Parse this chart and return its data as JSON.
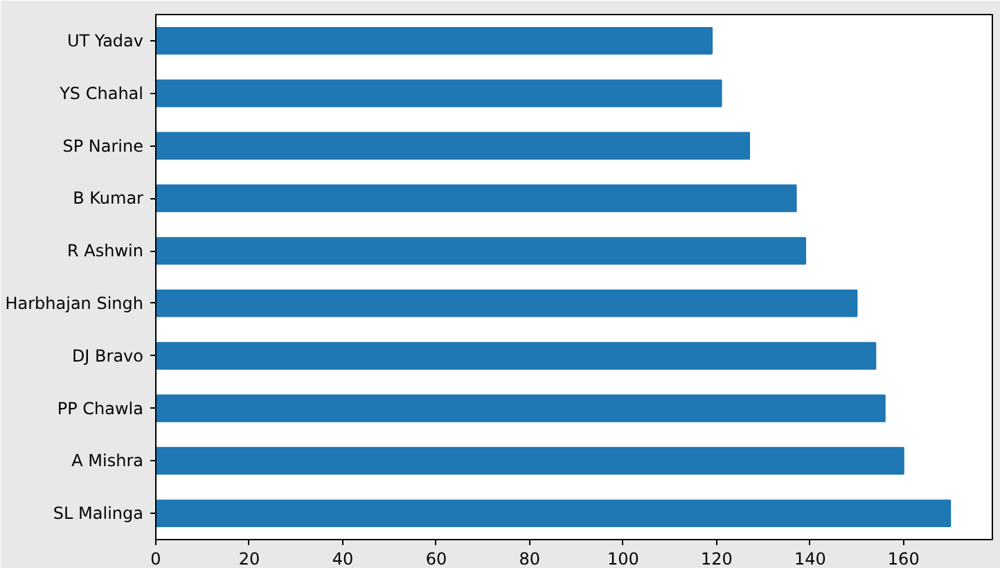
{
  "chart_data": {
    "type": "bar",
    "orientation": "horizontal",
    "categories": [
      "UT Yadav",
      "YS Chahal",
      "SP Narine",
      "B Kumar",
      "R Ashwin",
      "Harbhajan Singh",
      "DJ Bravo",
      "PP Chawla",
      "A Mishra",
      "SL Malinga"
    ],
    "values": [
      119,
      121,
      127,
      137,
      139,
      150,
      154,
      156,
      160,
      170
    ],
    "color": "#1f77b4",
    "xlim": [
      0,
      179
    ],
    "xticks": [
      0,
      20,
      40,
      60,
      80,
      100,
      120,
      140,
      160
    ],
    "grid": false
  }
}
